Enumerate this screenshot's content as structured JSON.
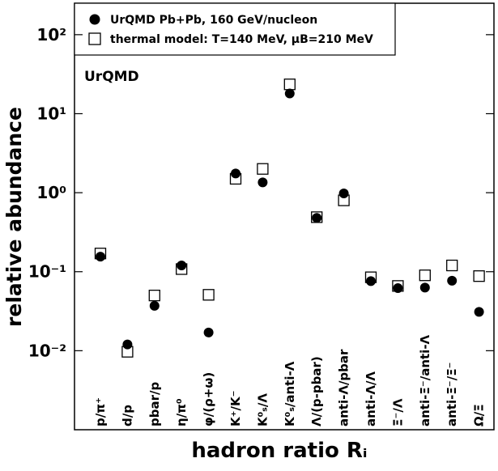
{
  "chart_data": {
    "type": "scatter",
    "x_label": "hadron ratio Rᵢ",
    "y_label": "relative abundance",
    "annotation": "UrQMD",
    "categories": [
      "p/π⁺",
      "d/p",
      "pbar/p",
      "η/π⁰",
      "φ/(ρ+ω)",
      "K⁺/K⁻",
      "K⁰ₛ/Λ",
      "K⁰ₛ/anti-Λ",
      "Λ/(p-pbar)",
      "anti-Λ/pbar",
      "anti-Λ/Λ",
      "Ξ⁻/Λ",
      "anti-Ξ⁻/anti-Λ",
      "anti-Ξ⁻/Ξ⁻",
      "Ω/Ξ"
    ],
    "series": [
      {
        "name": "UrQMD Pb+Pb, 160 GeV/nucleon",
        "marker": "filled-circle",
        "color": "#000000",
        "values": [
          0.155,
          0.012,
          0.037,
          0.12,
          0.017,
          1.75,
          1.35,
          18,
          0.48,
          0.98,
          0.076,
          0.062,
          0.063,
          0.077,
          0.031
        ]
      },
      {
        "name": "thermal model: T=140 MeV, μB=210 MeV",
        "marker": "open-square",
        "color": "#000000",
        "values": [
          0.17,
          0.0097,
          0.05,
          0.108,
          0.051,
          1.5,
          2.0,
          23.5,
          0.49,
          0.8,
          0.085,
          0.066,
          0.09,
          0.12,
          0.088
        ]
      }
    ],
    "log_y": true,
    "ylim": [
      0.001,
      250
    ],
    "yticks": [
      {
        "value": 0.01,
        "label": "10⁻²"
      },
      {
        "value": 0.1,
        "label": "10⁻¹"
      },
      {
        "value": 1,
        "label": "10⁰"
      },
      {
        "value": 10,
        "label": "10¹"
      },
      {
        "value": 100,
        "label": "10²"
      }
    ],
    "legend": "top-left"
  }
}
